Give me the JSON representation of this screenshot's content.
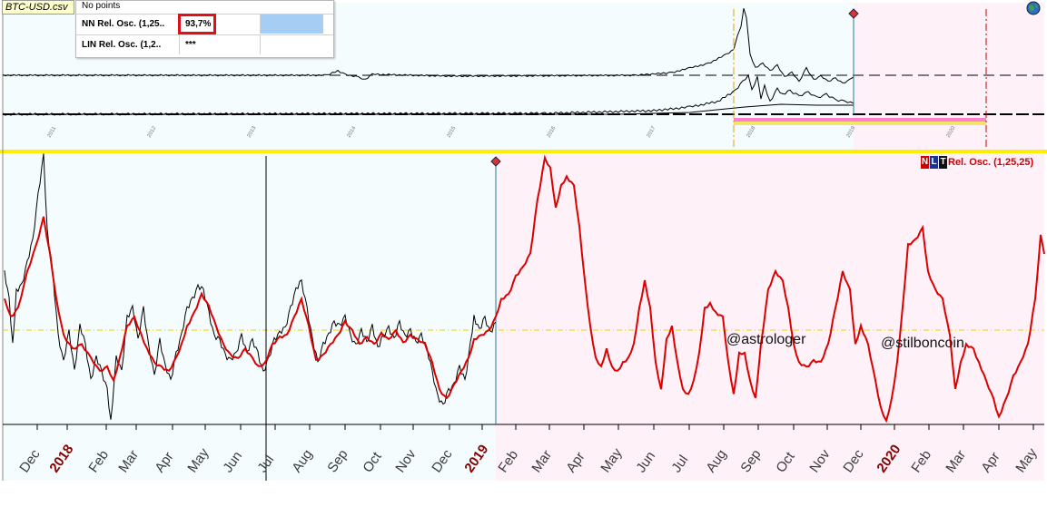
{
  "file_tab": {
    "label": "BTC-USD.csv"
  },
  "info_panel": {
    "title": "No points",
    "rows": [
      {
        "label": "NN Rel. Osc. (1,25..",
        "value": "93,7%",
        "swatch": "#a6cdf4"
      },
      {
        "label": "LIN Rel. Osc. (1,2..",
        "value": "***",
        "swatch": "#ffffff"
      }
    ]
  },
  "legend": {
    "n": "N",
    "l": "L",
    "t": "T",
    "name": "Rel. Osc. (1,25,25)"
  },
  "watermarks": [
    "@astrologer",
    "@stilboncoin"
  ],
  "colors": {
    "forecast_bg": "#fef1f8",
    "history_bg": "#f4fcfe",
    "actual_line": "#000000",
    "model_line": "#dd0000",
    "month_label": "#3c3c3c",
    "year_label": "#880000",
    "zero_line": "#f5d000",
    "divider": "#ffee00",
    "mini_band": "#ff7fd0"
  },
  "chart_data": {
    "type": "line",
    "title": "",
    "series": [
      {
        "name": "",
        "values": []
      },
      {
        "name": "Rel. Osc. (1,25,25)",
        "values": []
      }
    ],
    "x_tick_labels": [
      {
        "text": "Dec",
        "year": false
      },
      {
        "text": "2018",
        "year": true
      },
      {
        "text": "Feb",
        "year": false
      },
      {
        "text": "Mar",
        "year": false
      },
      {
        "text": "Apr",
        "year": false
      },
      {
        "text": "May",
        "year": false
      },
      {
        "text": "Jun",
        "year": false
      },
      {
        "text": "Jul",
        "year": false
      },
      {
        "text": "Aug",
        "year": false
      },
      {
        "text": "Sep",
        "year": false
      },
      {
        "text": "Oct",
        "year": false
      },
      {
        "text": "Nov",
        "year": false
      },
      {
        "text": "Dec",
        "year": false
      },
      {
        "text": "2019",
        "year": true
      },
      {
        "text": "Feb",
        "year": false
      },
      {
        "text": "Mar",
        "year": false
      },
      {
        "text": "Apr",
        "year": false
      },
      {
        "text": "May",
        "year": false
      },
      {
        "text": "Jun",
        "year": false
      },
      {
        "text": "Jul",
        "year": false
      },
      {
        "text": "Aug",
        "year": false
      },
      {
        "text": "Sep",
        "year": false
      },
      {
        "text": "Oct",
        "year": false
      },
      {
        "text": "Nov",
        "year": false
      },
      {
        "text": "Dec",
        "year": false
      },
      {
        "text": "2020",
        "year": true
      },
      {
        "text": "Feb",
        "year": false
      },
      {
        "text": "Mar",
        "year": false
      },
      {
        "text": "Apr",
        "year": false
      },
      {
        "text": "May",
        "year": false
      }
    ],
    "mini_chart_tick_labels": [
      "2011",
      "2012",
      "2013",
      "2014",
      "2015",
      "2016",
      "2017",
      "2018",
      "2019",
      "2020"
    ],
    "grid": false,
    "legend_position": "top-right"
  }
}
